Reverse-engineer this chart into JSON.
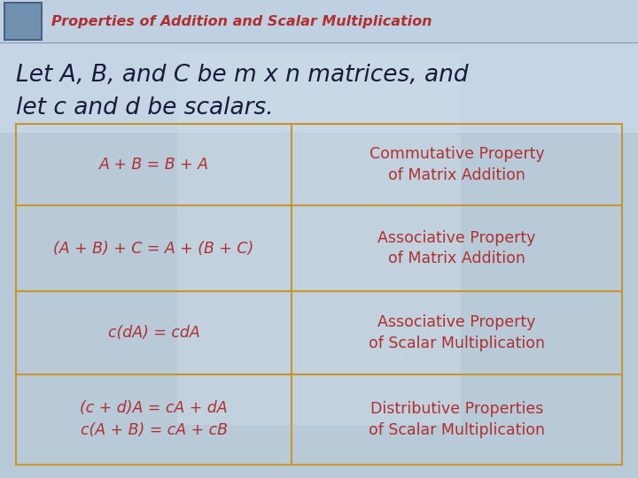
{
  "title": "Properties of Addition and Scalar Multiplication",
  "title_color": "#B03030",
  "title_fontsize": 11.5,
  "header_bg": "#BFD0E0",
  "bg_color": "#B8CAD8",
  "intro_fontsize": 19,
  "intro_color": "#1a1a3a",
  "table_border_color": "#C8962C",
  "table_text_color": "#B03030",
  "left_icon_color": "#4A6080",
  "rows": [
    {
      "left": "A + B = B + A",
      "right": "Commutative Property\nof Matrix Addition"
    },
    {
      "left": "(A + B) + C = A + (B + C)",
      "right": "Associative Property\nof Matrix Addition"
    },
    {
      "left": "c(dA) = cdA",
      "right": "Associative Property\nof Scalar Multiplication"
    },
    {
      "left": "(c + d)A = cA + dA\nc(A + B) = cA + cB",
      "right": "Distributive Properties\nof Scalar Multiplication"
    }
  ]
}
